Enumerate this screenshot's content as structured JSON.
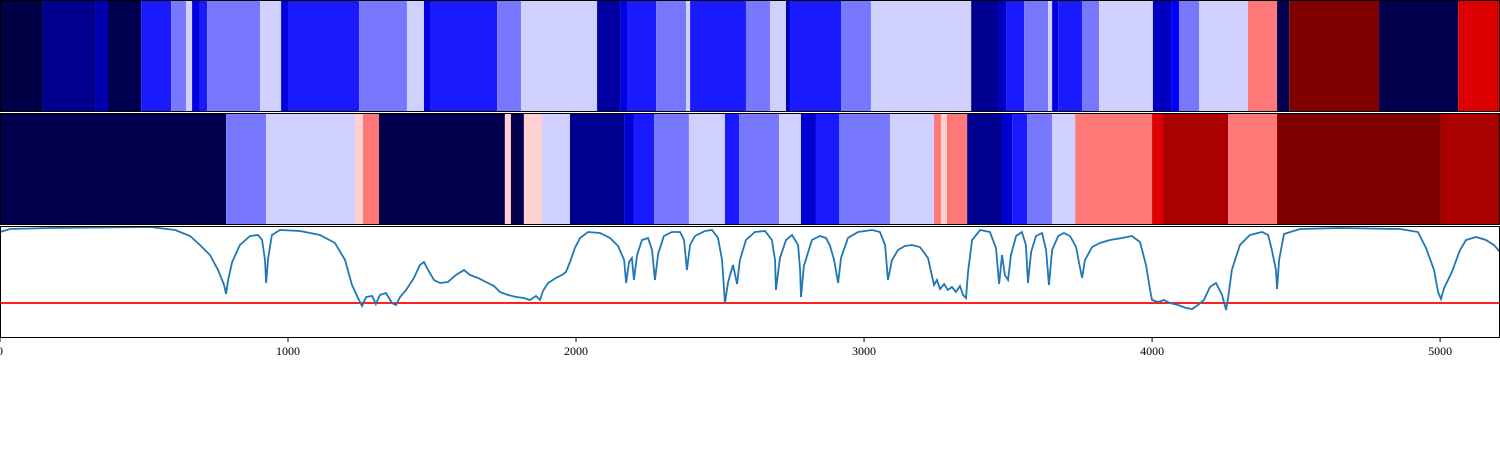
{
  "chart_data": [
    {
      "type": "strip",
      "edges": [
        0,
        146,
        330,
        375,
        490,
        594,
        646,
        667,
        694,
        719,
        903,
        976,
        1000,
        1247,
        1413,
        1472,
        1493,
        1726,
        1809,
        2073,
        2153,
        2177,
        2278,
        2382,
        2396,
        2590,
        2674,
        2729,
        2743,
        2920,
        3024,
        3372,
        3465,
        3493,
        3556,
        3639,
        3653,
        3674,
        3757,
        3816,
        4003,
        4066,
        4094,
        4163,
        4333,
        4434,
        4476,
        4788,
        5063,
        5208
      ],
      "colors": [
        "#000046",
        "#00008c",
        "#0000b0",
        "#000050",
        "#1a1aff",
        "#7878ff",
        "#d0d0ff",
        "#0000e0",
        "#1a1aff",
        "#7878ff",
        "#d0d0ff",
        "#0000e0",
        "#1a1aff",
        "#7878ff",
        "#d0d0ff",
        "#0000e0",
        "#1a1aff",
        "#7878ff",
        "#d0d0ff",
        "#0000a0",
        "#0000e0",
        "#1a1aff",
        "#7878ff",
        "#d0d0ff",
        "#1a1aff",
        "#7878ff",
        "#d0d0ff",
        "#0000c0",
        "#1a1aff",
        "#7878ff",
        "#d0d0ff",
        "#000090",
        "#0000c0",
        "#1a1aff",
        "#7878ff",
        "#d0d0ff",
        "#0000e0",
        "#1a1aff",
        "#7878ff",
        "#d0d0ff",
        "#0000c0",
        "#0000ff",
        "#7878ff",
        "#d0d0ff",
        "#ff7878",
        "#000050",
        "#800000",
        "#00004c",
        "#dd0000"
      ]
    },
    {
      "type": "strip",
      "edges": [
        0,
        785,
        924,
        1233,
        1260,
        1316,
        1753,
        1774,
        1819,
        1882,
        1979,
        2167,
        2201,
        2271,
        2392,
        2517,
        2566,
        2705,
        2781,
        2833,
        2913,
        3090,
        3243,
        3267,
        3288,
        3358,
        3479,
        3514,
        3566,
        3653,
        3733,
        4000,
        4038,
        4264,
        4434,
        5003,
        5208
      ],
      "colors": [
        "#00004c",
        "#7878ff",
        "#d0d0ff",
        "#ffd0d0",
        "#ff7878",
        "#00004c",
        "#ffd0d0",
        "#00004c",
        "#ffd0d0",
        "#d0d0ff",
        "#000090",
        "#0000d0",
        "#1a1aff",
        "#7878ff",
        "#d0d0ff",
        "#1a1aff",
        "#7878ff",
        "#d0d0ff",
        "#0000d0",
        "#1a1aff",
        "#7878ff",
        "#d0d0ff",
        "#ff7878",
        "#ffd0d0",
        "#ff7878",
        "#000090",
        "#0000d0",
        "#1a1aff",
        "#7878ff",
        "#d0d0ff",
        "#ff7878",
        "#dd0000",
        "#aa0000",
        "#ff7878",
        "#800000",
        "#aa0000"
      ]
    },
    {
      "type": "line",
      "color": "#1f77b4",
      "hline": 35,
      "hline_color": "#ff0000",
      "xlim": [
        0,
        5208
      ],
      "ylim": [
        0,
        112
      ],
      "xticks": [
        0,
        1000,
        2000,
        3000,
        4000,
        5000
      ],
      "x": [
        0,
        35,
        174,
        521,
        608,
        660,
        694,
        729,
        757,
        778,
        785,
        792,
        806,
        833,
        868,
        896,
        910,
        920,
        924,
        931,
        944,
        972,
        1042,
        1111,
        1163,
        1198,
        1222,
        1243,
        1257,
        1271,
        1292,
        1305,
        1319,
        1340,
        1361,
        1375,
        1389,
        1410,
        1437,
        1458,
        1472,
        1486,
        1507,
        1528,
        1555,
        1583,
        1611,
        1632,
        1660,
        1687,
        1715,
        1736,
        1764,
        1792,
        1819,
        1840,
        1861,
        1875,
        1885,
        1903,
        1930,
        1951,
        1965,
        1979,
        1996,
        2014,
        2042,
        2083,
        2118,
        2146,
        2167,
        2174,
        2184,
        2194,
        2201,
        2212,
        2229,
        2250,
        2264,
        2274,
        2285,
        2305,
        2333,
        2361,
        2375,
        2385,
        2396,
        2413,
        2448,
        2472,
        2493,
        2507,
        2517,
        2528,
        2545,
        2559,
        2569,
        2590,
        2621,
        2656,
        2680,
        2691,
        2694,
        2708,
        2729,
        2750,
        2771,
        2778,
        2781,
        2791,
        2819,
        2847,
        2868,
        2882,
        2896,
        2910,
        2920,
        2944,
        2979,
        3028,
        3055,
        3073,
        3083,
        3097,
        3118,
        3142,
        3166,
        3194,
        3222,
        3243,
        3253,
        3264,
        3278,
        3291,
        3305,
        3319,
        3333,
        3344,
        3354,
        3361,
        3375,
        3403,
        3437,
        3458,
        3469,
        3479,
        3489,
        3500,
        3510,
        3528,
        3548,
        3562,
        3569,
        3580,
        3597,
        3618,
        3632,
        3642,
        3653,
        3674,
        3694,
        3715,
        3736,
        3750,
        3757,
        3767,
        3792,
        3819,
        3854,
        3896,
        3930,
        3958,
        3979,
        3993,
        4000,
        4021,
        4041,
        4062,
        4090,
        4118,
        4139,
        4159,
        4180,
        4201,
        4222,
        4243,
        4257,
        4264,
        4277,
        4305,
        4340,
        4382,
        4403,
        4416,
        4430,
        4434,
        4441,
        4458,
        4514,
        4652,
        4861,
        4923,
        4951,
        4979,
        4993,
        5003,
        5014,
        5041,
        5069,
        5090,
        5125,
        5159,
        5187,
        5208
      ],
      "values": [
        106,
        109,
        110,
        111,
        108,
        102,
        93,
        83,
        68,
        53,
        44,
        58,
        76,
        93,
        102,
        103,
        98,
        78,
        55,
        80,
        103,
        108,
        107,
        103,
        95,
        78,
        53,
        40,
        32,
        41,
        42,
        34,
        43,
        45,
        35,
        33,
        41,
        48,
        60,
        73,
        76,
        68,
        58,
        55,
        56,
        63,
        68,
        63,
        60,
        56,
        52,
        46,
        43,
        41,
        40,
        38,
        42,
        38,
        47,
        55,
        60,
        63,
        66,
        76,
        90,
        100,
        106,
        105,
        100,
        92,
        78,
        55,
        76,
        80,
        58,
        83,
        98,
        100,
        88,
        58,
        84,
        102,
        106,
        106,
        98,
        68,
        93,
        102,
        107,
        108,
        100,
        78,
        35,
        56,
        73,
        54,
        78,
        98,
        106,
        107,
        98,
        78,
        48,
        80,
        98,
        103,
        93,
        68,
        41,
        72,
        98,
        102,
        100,
        92,
        78,
        55,
        80,
        100,
        106,
        108,
        106,
        93,
        58,
        78,
        88,
        92,
        93,
        91,
        80,
        53,
        58,
        49,
        54,
        48,
        51,
        46,
        52,
        43,
        40,
        66,
        98,
        108,
        106,
        90,
        54,
        83,
        63,
        58,
        83,
        102,
        106,
        93,
        55,
        86,
        102,
        105,
        88,
        53,
        88,
        102,
        105,
        102,
        91,
        70,
        60,
        78,
        91,
        95,
        98,
        100,
        102,
        96,
        73,
        48,
        38,
        36,
        38,
        35,
        33,
        30,
        29,
        33,
        38,
        51,
        55,
        43,
        28,
        40,
        68,
        93,
        103,
        106,
        103,
        88,
        68,
        49,
        78,
        104,
        109,
        110,
        109,
        106,
        90,
        68,
        46,
        39,
        50,
        66,
        88,
        98,
        101,
        98,
        93,
        86
      ]
    }
  ]
}
